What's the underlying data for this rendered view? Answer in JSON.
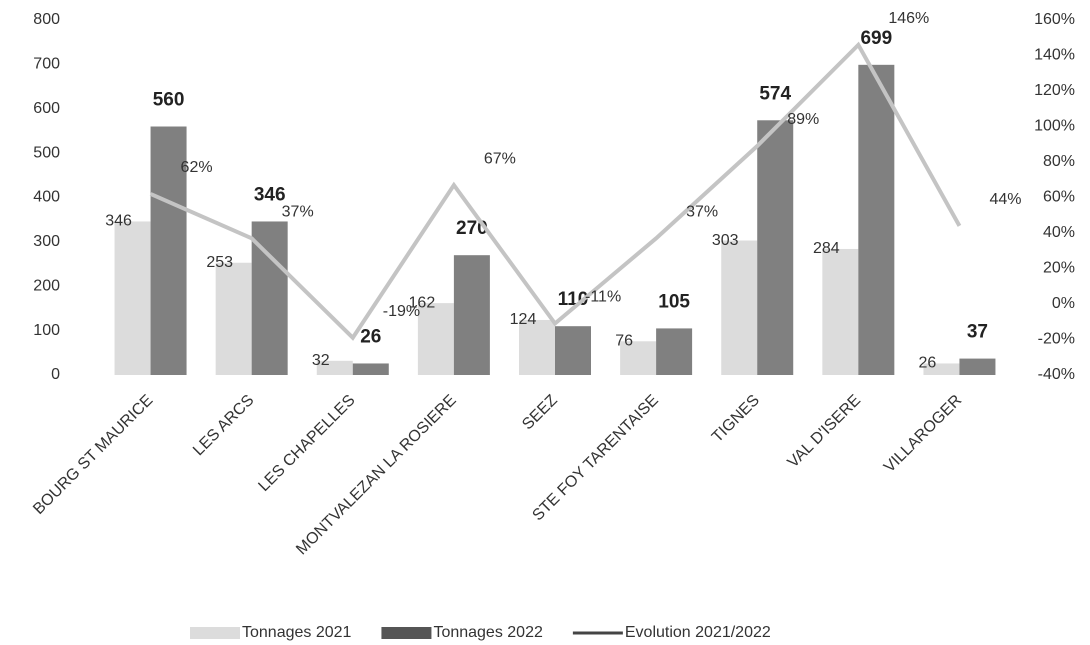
{
  "chart_data": {
    "type": "bar",
    "categories": [
      "BOURG ST MAURICE",
      "LES ARCS",
      "LES CHAPELLES",
      "MONTVALEZAN LA ROSIERE",
      "SEEZ",
      "STE FOY TARENTAISE",
      "TIGNES",
      "VAL D'ISERE",
      "VILLAROGER"
    ],
    "series": [
      {
        "name": "Tonnages 2021",
        "color": "#dcdcdc",
        "values": [
          346,
          253,
          32,
          162,
          124,
          76,
          303,
          284,
          26
        ]
      },
      {
        "name": "Tonnages 2022",
        "color": "#808080",
        "values": [
          560,
          346,
          26,
          270,
          110,
          105,
          574,
          699,
          37
        ]
      },
      {
        "name": "Evolution 2021/2022",
        "type": "line",
        "axis": "y2",
        "color": "#c4c4c4",
        "values": [
          62,
          37,
          -19,
          67,
          -11,
          37,
          89,
          146,
          44
        ],
        "value_labels": [
          "62%",
          "37%",
          "-19%",
          "67%",
          "-11%",
          "37%",
          "89%",
          "146%",
          "44%"
        ]
      }
    ],
    "ylim": [
      0,
      800
    ],
    "yticks": [
      0,
      100,
      200,
      300,
      400,
      500,
      600,
      700,
      800
    ],
    "y2lim": [
      -40,
      160
    ],
    "y2ticks": [
      {
        "value": -40,
        "label": "-40%"
      },
      {
        "value": -20,
        "label": "-20%"
      },
      {
        "value": 0,
        "label": "0%"
      },
      {
        "value": 20,
        "label": "20%"
      },
      {
        "value": 40,
        "label": "40%"
      },
      {
        "value": 60,
        "label": "60%"
      },
      {
        "value": 80,
        "label": "80%"
      },
      {
        "value": 100,
        "label": "100%"
      },
      {
        "value": 120,
        "label": "120%"
      },
      {
        "value": 140,
        "label": "140%"
      },
      {
        "value": 160,
        "label": "160%"
      }
    ],
    "grid": false,
    "legend": "bottom"
  }
}
